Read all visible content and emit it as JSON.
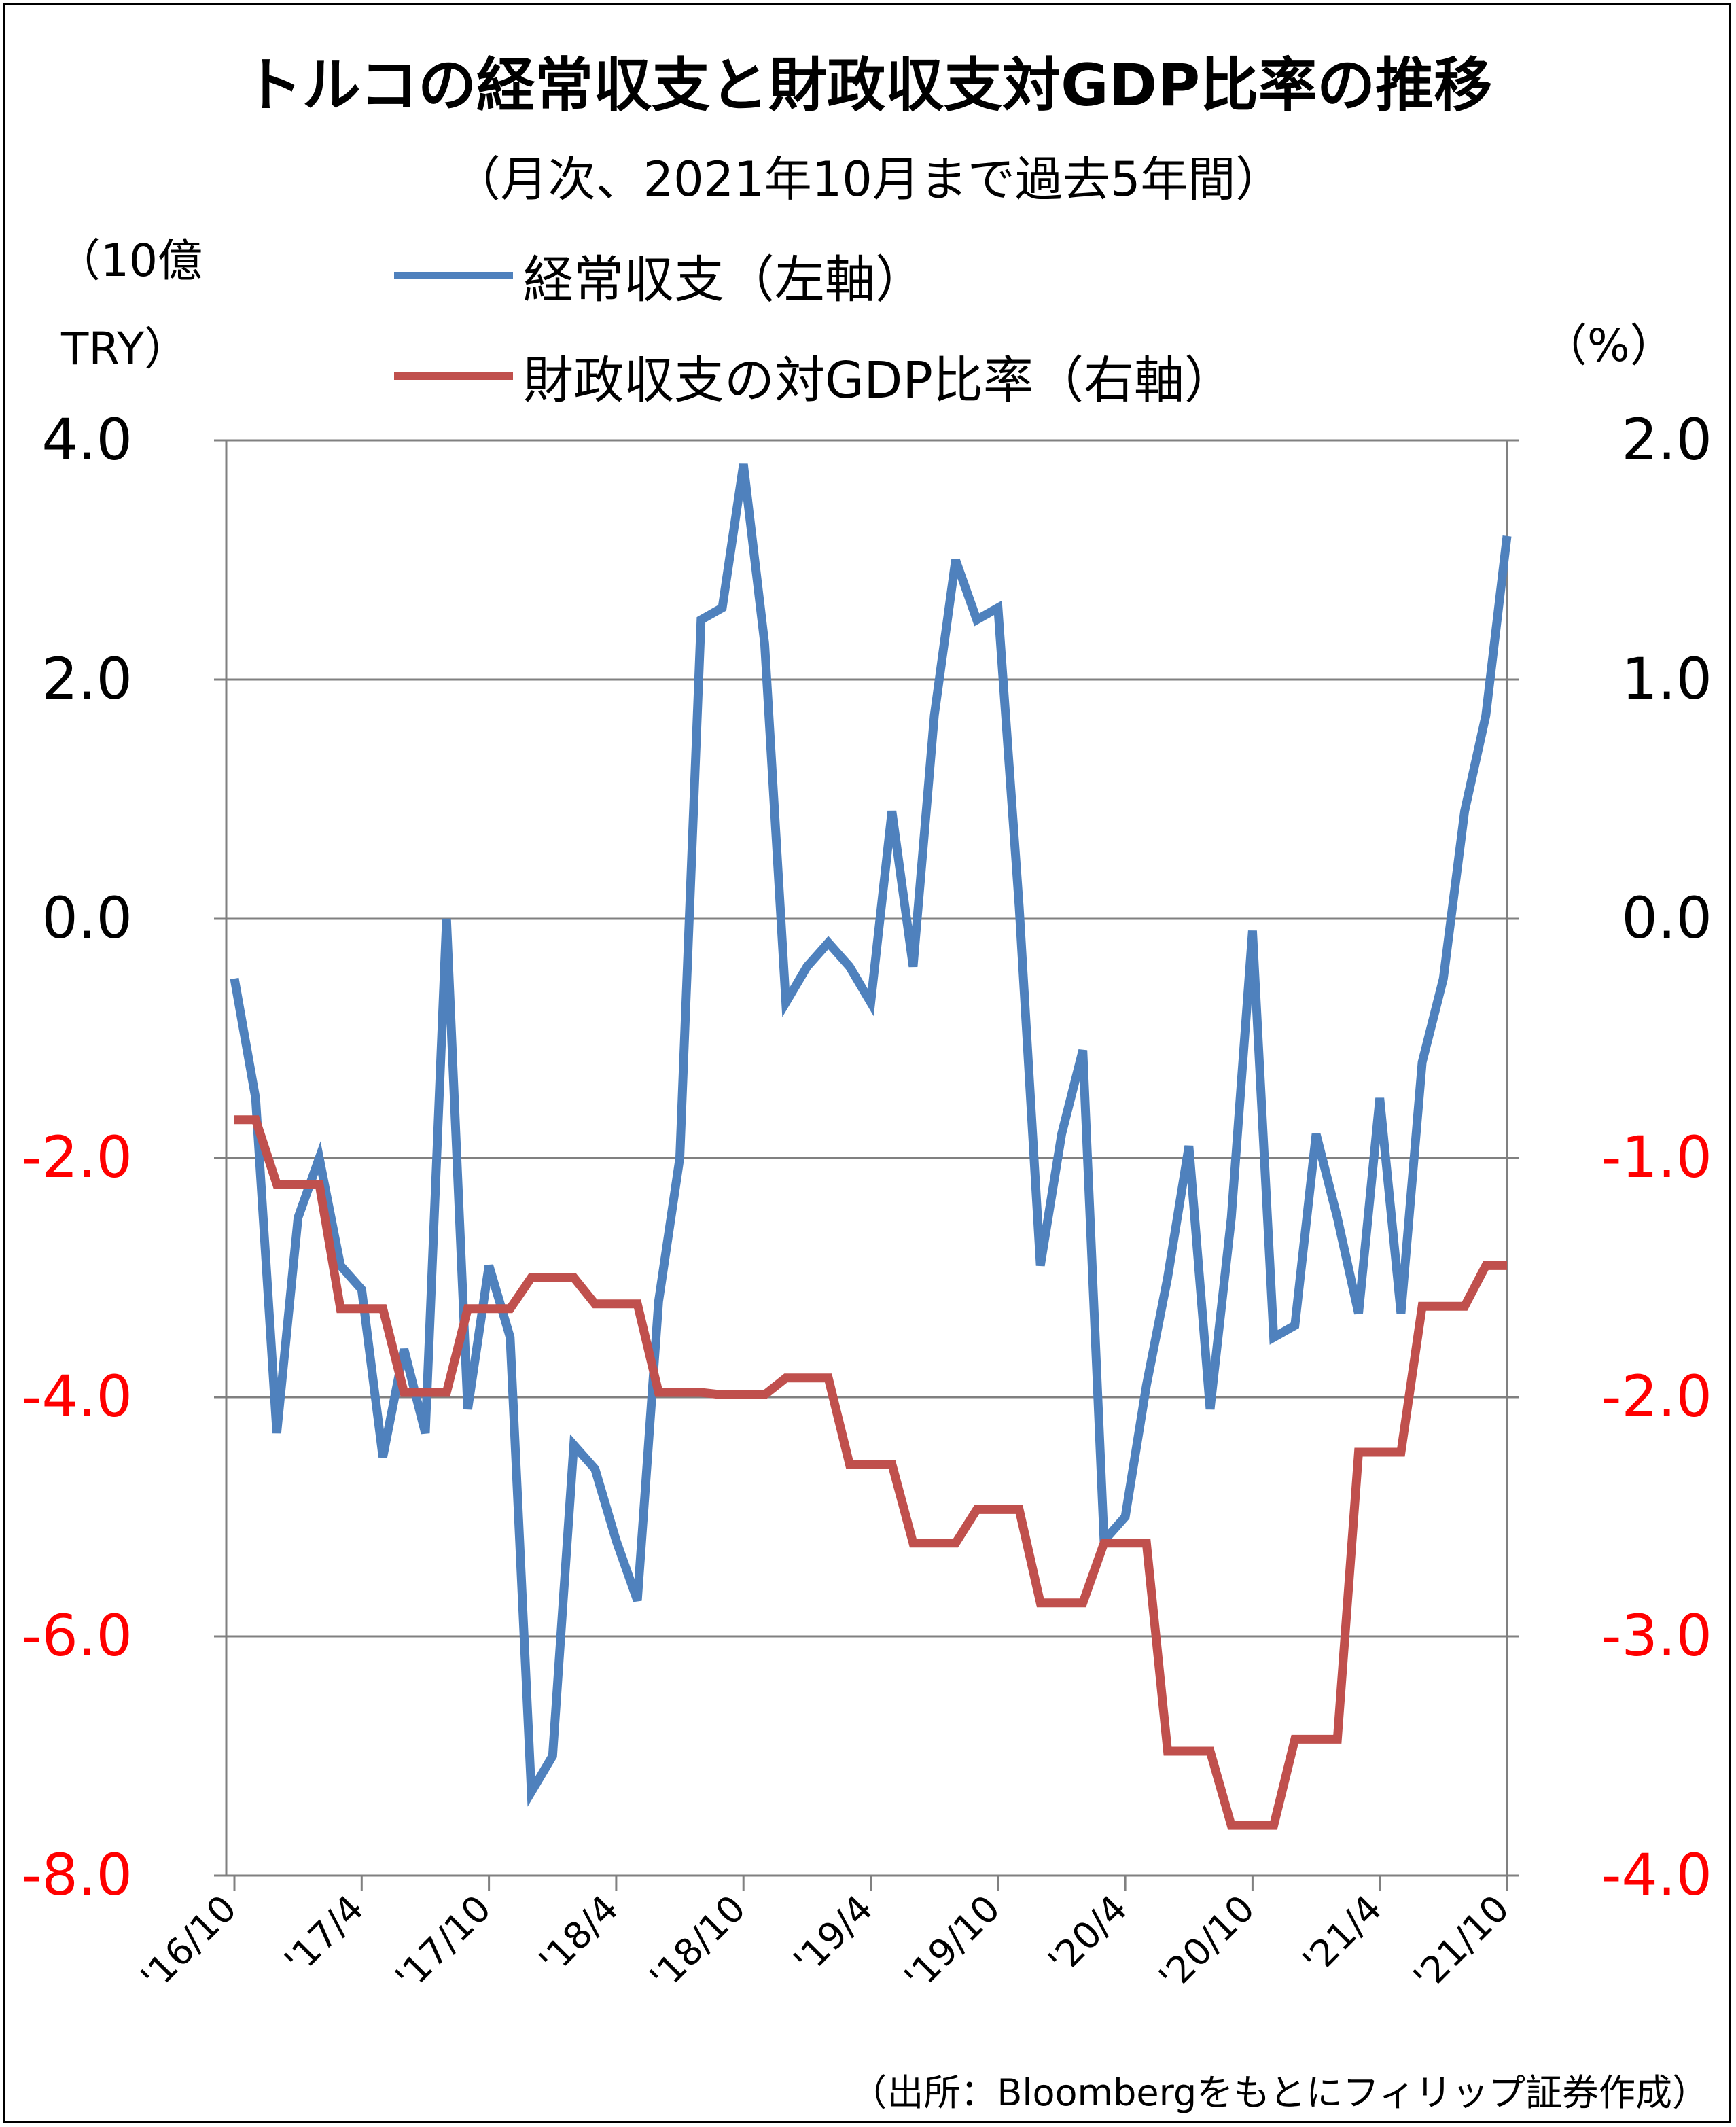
{
  "colors": {
    "left_series": "#4F81BD",
    "right_series": "#C0504D",
    "negative_tick": "#FF0000",
    "grid": "#808080"
  },
  "header": {
    "title": "トルコの経常収支と財政収支対GDP比率の推移",
    "subtitle": "（月次、2021年10月まで過去5年間）"
  },
  "units": {
    "left_line1": "（10億",
    "left_line2": "TRY）",
    "right": "（%）"
  },
  "legend": [
    {
      "label": "経常収支（左軸）",
      "color": "#4F81BD"
    },
    {
      "label": "財政収支の対GDP比率（右軸）",
      "color": "#C0504D"
    }
  ],
  "source": "（出所：Bloombergをもとにフィリップ証券作成）",
  "chart_data": {
    "type": "line",
    "x_start": "2016-10",
    "x_ticks": [
      "'16/10",
      "'17/4",
      "'17/10",
      "'18/4",
      "'18/10",
      "'19/4",
      "'19/10",
      "'20/4",
      "'20/10",
      "'21/4",
      "'21/10"
    ],
    "left_axis": {
      "ylim": [
        -8.0,
        4.0
      ],
      "ticks": [
        "4.0",
        "2.0",
        "0.0",
        "-2.0",
        "-4.0",
        "-6.0",
        "-8.0"
      ]
    },
    "right_axis": {
      "ylim": [
        -4.0,
        2.0
      ],
      "ticks": [
        "2.0",
        "1.0",
        "0.0",
        "-1.0",
        "-2.0",
        "-3.0",
        "-4.0"
      ]
    },
    "grid": "horizontal",
    "series": [
      {
        "name": "経常収支（左軸）",
        "axis": "left",
        "values": [
          -0.5,
          -1.5,
          -4.3,
          -2.5,
          -2.0,
          -2.9,
          -3.1,
          -4.5,
          -3.6,
          -4.3,
          0.0,
          -4.1,
          -2.9,
          -3.5,
          -7.3,
          -7.0,
          -4.4,
          -4.6,
          -5.2,
          -5.7,
          -3.2,
          -2.0,
          2.5,
          2.6,
          3.8,
          2.3,
          -0.7,
          -0.4,
          -0.2,
          -0.4,
          -0.7,
          0.9,
          -0.4,
          1.7,
          3.0,
          2.5,
          2.6,
          0.1,
          -2.9,
          -1.8,
          -1.1,
          -5.2,
          -5.0,
          -3.9,
          -3.0,
          -1.9,
          -4.1,
          -2.5,
          -0.1,
          -3.5,
          -3.4,
          -1.8,
          -2.5,
          -3.3,
          -1.5,
          -3.3,
          -1.2,
          -0.5,
          0.9,
          1.7,
          3.2
        ]
      },
      {
        "name": "財政収支の対GDP比率（右軸）",
        "axis": "right",
        "values": [
          -0.84,
          -0.84,
          -1.11,
          -1.11,
          -1.11,
          -1.63,
          -1.63,
          -1.63,
          -1.98,
          -1.98,
          -1.98,
          -1.63,
          -1.63,
          -1.63,
          -1.5,
          -1.5,
          -1.5,
          -1.61,
          -1.61,
          -1.61,
          -1.98,
          -1.98,
          -1.98,
          -1.99,
          -1.99,
          -1.99,
          -1.92,
          -1.92,
          -1.92,
          -2.28,
          -2.28,
          -2.28,
          -2.61,
          -2.61,
          -2.61,
          -2.47,
          -2.47,
          -2.47,
          -2.86,
          -2.86,
          -2.86,
          -2.61,
          -2.61,
          -2.61,
          -3.48,
          -3.48,
          -3.48,
          -3.79,
          -3.79,
          -3.79,
          -3.43,
          -3.43,
          -3.43,
          -2.23,
          -2.23,
          -2.23,
          -1.62,
          -1.62,
          -1.62,
          -1.45,
          -1.45
        ]
      }
    ]
  }
}
